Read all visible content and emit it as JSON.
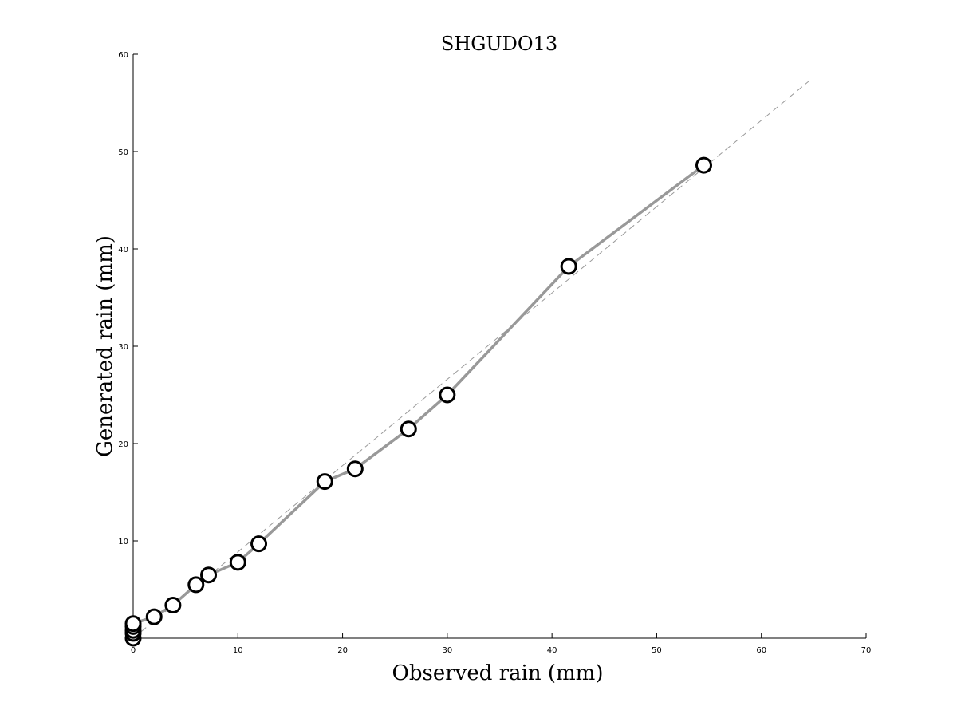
{
  "chart_data": {
    "type": "line",
    "title": "SHGUDO13",
    "xlabel": "Observed rain (mm)",
    "ylabel": "Generated rain (mm)",
    "xlim": [
      0,
      70
    ],
    "ylim": [
      0,
      60
    ],
    "xticks": [
      0,
      10,
      20,
      30,
      40,
      50,
      60,
      70
    ],
    "yticks": [
      10,
      20,
      30,
      40,
      50,
      60
    ],
    "ytick_zero_label": "0",
    "grid": false,
    "reference_line": {
      "style": "dashed",
      "color": "#9a9a9a",
      "from": [
        0,
        0
      ],
      "to": [
        64.5,
        57.2
      ]
    },
    "series": [
      {
        "color": "#999999",
        "marker": "open-circle",
        "points": [
          [
            0,
            0.0
          ],
          [
            0,
            0.5
          ],
          [
            0,
            0.8
          ],
          [
            0,
            1.2
          ],
          [
            0,
            1.5
          ],
          [
            2.0,
            2.2
          ],
          [
            3.8,
            3.4
          ],
          [
            6.0,
            5.5
          ],
          [
            7.2,
            6.5
          ],
          [
            10.0,
            7.8
          ],
          [
            12.0,
            9.7
          ],
          [
            18.3,
            16.1
          ],
          [
            21.2,
            17.4
          ],
          [
            26.3,
            21.5
          ],
          [
            30.0,
            25.0
          ],
          [
            41.6,
            38.2
          ],
          [
            54.5,
            48.6
          ]
        ]
      }
    ]
  }
}
